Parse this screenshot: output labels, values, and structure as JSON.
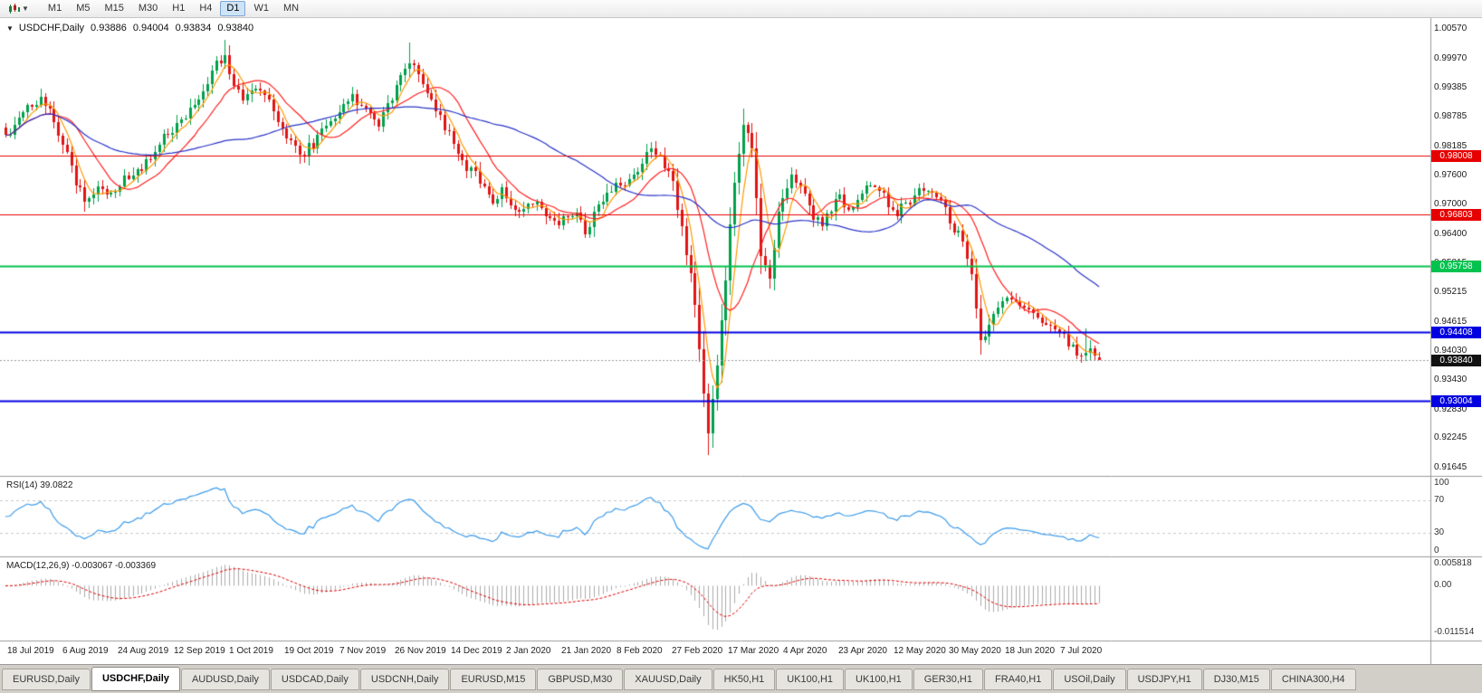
{
  "toolbar": {
    "timeframes": [
      "M1",
      "M5",
      "M15",
      "M30",
      "H1",
      "H4",
      "D1",
      "W1",
      "MN"
    ],
    "active_timeframe": "D1"
  },
  "chart_header": {
    "dropdown_glyph": "▼",
    "symbol": "USDCHF,Daily",
    "open": "0.93886",
    "high": "0.94004",
    "low": "0.93834",
    "close": "0.93840"
  },
  "price_axis": {
    "labels": [
      "1.00570",
      "0.99970",
      "0.99385",
      "0.98785",
      "0.98185",
      "0.97600",
      "0.97000",
      "0.96400",
      "0.95815",
      "0.95215",
      "0.94615",
      "0.94030",
      "0.93430",
      "0.92830",
      "0.92245",
      "0.91645"
    ]
  },
  "horizontal_lines": [
    {
      "label": "0.98008",
      "value": 0.98008,
      "color": "#e60000",
      "width": 1
    },
    {
      "label": "0.96803",
      "value": 0.96803,
      "color": "#e60000",
      "width": 1
    },
    {
      "label": "0.95758",
      "value": 0.95758,
      "color": "#00c24e",
      "width": 2
    },
    {
      "label": "0.94408",
      "value": 0.94408,
      "color": "#0000e0",
      "width": 2
    },
    {
      "label": "0.93004",
      "value": 0.93004,
      "color": "#0000e0",
      "width": 2
    }
  ],
  "current_price": {
    "label": "0.93840",
    "value": 0.9384,
    "badge_color": "#111111",
    "line_color": "#9a9a9a"
  },
  "indicators": {
    "rsi": {
      "label": "RSI(14) 39.0822",
      "period": 14,
      "value": 39.0822,
      "axis_labels": [
        "100",
        "70",
        "30",
        "0"
      ],
      "level_lines": [
        70,
        30
      ],
      "color": "#3c9be9"
    },
    "macd": {
      "label": "MACD(12,26,9) -0.003067 -0.003369",
      "fast": 12,
      "slow": 26,
      "signal_period": 9,
      "macd_value": -0.003067,
      "signal_value": -0.003369,
      "axis_labels": [
        "0.005818",
        "0.00",
        "-0.011514"
      ],
      "axis_values": [
        0.005818,
        0,
        -0.011514
      ],
      "histogram_color": "#ababab",
      "signal_color": "#dd0000"
    }
  },
  "date_axis": {
    "labels": [
      "18 Jul 2019",
      "6 Aug 2019",
      "24 Aug 2019",
      "12 Sep 2019",
      "1 Oct 2019",
      "19 Oct 2019",
      "7 Nov 2019",
      "26 Nov 2019",
      "14 Dec 2019",
      "2 Jan 2020",
      "21 Jan 2020",
      "8 Feb 2020",
      "27 Feb 2020",
      "17 Mar 2020",
      "4 Apr 2020",
      "23 Apr 2020",
      "12 May 2020",
      "30 May 2020",
      "18 Jun 2020",
      "7 Jul 2020"
    ]
  },
  "tabs": [
    {
      "label": "EURUSD,Daily",
      "active": false
    },
    {
      "label": "USDCHF,Daily",
      "active": true
    },
    {
      "label": "AUDUSD,Daily",
      "active": false
    },
    {
      "label": "USDCAD,Daily",
      "active": false
    },
    {
      "label": "USDCNH,Daily",
      "active": false
    },
    {
      "label": "EURUSD,M15",
      "active": false
    },
    {
      "label": "GBPUSD,M30",
      "active": false
    },
    {
      "label": "XAUUSD,Daily",
      "active": false
    },
    {
      "label": "HK50,H1",
      "active": false
    },
    {
      "label": "UK100,H1",
      "active": false
    },
    {
      "label": "UK100,H1",
      "active": false
    },
    {
      "label": "GER30,H1",
      "active": false
    },
    {
      "label": "FRA40,H1",
      "active": false
    },
    {
      "label": "USOil,Daily",
      "active": false
    },
    {
      "label": "USDJPY,H1",
      "active": false
    },
    {
      "label": "DJ30,M15",
      "active": false
    },
    {
      "label": "CHINA300,H4",
      "active": false
    }
  ],
  "chart_data": {
    "type": "candlestick",
    "symbol": "USDCHF",
    "timeframe": "Daily",
    "bars": 250,
    "ylim": [
      0.9148,
      1.008
    ],
    "up_color": "#00a14b",
    "down_color": "#e01515",
    "last_ohlc": {
      "open": 0.93886,
      "high": 0.94004,
      "low": 0.93834,
      "close": 0.9384
    },
    "close_waypoints": [
      [
        0,
        0.984
      ],
      [
        2,
        0.9868
      ],
      [
        5,
        0.9898
      ],
      [
        8,
        0.9915
      ],
      [
        10,
        0.9888
      ],
      [
        13,
        0.9825
      ],
      [
        16,
        0.9748
      ],
      [
        18,
        0.9712
      ],
      [
        20,
        0.9732
      ],
      [
        23,
        0.972
      ],
      [
        26,
        0.9745
      ],
      [
        30,
        0.9768
      ],
      [
        33,
        0.98
      ],
      [
        36,
        0.9835
      ],
      [
        40,
        0.987
      ],
      [
        43,
        0.99
      ],
      [
        46,
        0.9955
      ],
      [
        48,
        0.9985
      ],
      [
        50,
        1.0
      ],
      [
        52,
        0.995
      ],
      [
        54,
        0.992
      ],
      [
        57,
        0.9945
      ],
      [
        60,
        0.9905
      ],
      [
        63,
        0.9855
      ],
      [
        65,
        0.983
      ],
      [
        67,
        0.9795
      ],
      [
        70,
        0.9825
      ],
      [
        73,
        0.9855
      ],
      [
        76,
        0.9885
      ],
      [
        79,
        0.992
      ],
      [
        82,
        0.9895
      ],
      [
        85,
        0.9862
      ],
      [
        88,
        0.992
      ],
      [
        90,
        0.9965
      ],
      [
        92,
        0.9995
      ],
      [
        94,
        0.996
      ],
      [
        96,
        0.993
      ],
      [
        98,
        0.989
      ],
      [
        101,
        0.9845
      ],
      [
        104,
        0.9785
      ],
      [
        107,
        0.976
      ],
      [
        109,
        0.973
      ],
      [
        111,
        0.9705
      ],
      [
        113,
        0.9725
      ],
      [
        115,
        0.969
      ],
      [
        117,
        0.968
      ],
      [
        120,
        0.9705
      ],
      [
        123,
        0.968
      ],
      [
        126,
        0.9655
      ],
      [
        128,
        0.968
      ],
      [
        130,
        0.9682
      ],
      [
        132,
        0.965
      ],
      [
        134,
        0.968
      ],
      [
        136,
        0.9705
      ],
      [
        139,
        0.9735
      ],
      [
        142,
        0.9752
      ],
      [
        145,
        0.9788
      ],
      [
        147,
        0.9805
      ],
      [
        149,
        0.979
      ],
      [
        151,
        0.9778
      ],
      [
        153,
        0.97
      ],
      [
        155,
        0.96
      ],
      [
        157,
        0.95
      ],
      [
        159,
        0.932
      ],
      [
        160,
        0.9245
      ],
      [
        162,
        0.938
      ],
      [
        164,
        0.955
      ],
      [
        166,
        0.975
      ],
      [
        168,
        0.987
      ],
      [
        170,
        0.982
      ],
      [
        172,
        0.96
      ],
      [
        174,
        0.956
      ],
      [
        176,
        0.968
      ],
      [
        179,
        0.976
      ],
      [
        181,
        0.974
      ],
      [
        184,
        0.968
      ],
      [
        186,
        0.965
      ],
      [
        189,
        0.972
      ],
      [
        192,
        0.969
      ],
      [
        194,
        0.972
      ],
      [
        197,
        0.9745
      ],
      [
        200,
        0.9715
      ],
      [
        203,
        0.9685
      ],
      [
        206,
        0.9712
      ],
      [
        209,
        0.9732
      ],
      [
        212,
        0.9718
      ],
      [
        215,
        0.9672
      ],
      [
        218,
        0.962
      ],
      [
        220,
        0.956
      ],
      [
        222,
        0.9425
      ],
      [
        224,
        0.946
      ],
      [
        226,
        0.949
      ],
      [
        228,
        0.9515
      ],
      [
        231,
        0.95
      ],
      [
        234,
        0.948
      ],
      [
        237,
        0.9462
      ],
      [
        240,
        0.944
      ],
      [
        243,
        0.9408
      ],
      [
        245,
        0.9385
      ],
      [
        247,
        0.9418
      ],
      [
        249,
        0.9384
      ]
    ],
    "spikes": [
      {
        "i": 50,
        "high": 1.0035
      },
      {
        "i": 92,
        "high": 1.003
      },
      {
        "i": 147,
        "high": 0.9815
      },
      {
        "i": 160,
        "low": 0.919
      },
      {
        "i": 168,
        "high": 0.9895
      },
      {
        "i": 246,
        "high": 0.9448
      }
    ],
    "moving_averages": [
      {
        "period": 5,
        "color": "#ff9900"
      },
      {
        "period": 13,
        "color": "#ff2020"
      },
      {
        "period": 45,
        "color": "#2a35c8"
      }
    ]
  }
}
